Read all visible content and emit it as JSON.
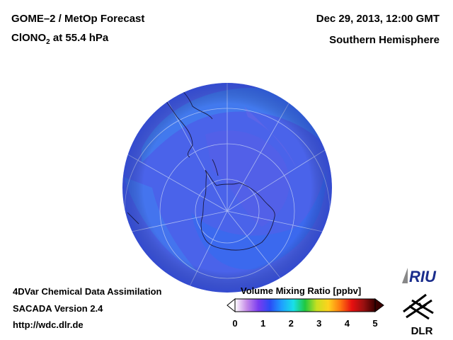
{
  "header": {
    "title": "GOME–2 / MetOp Forecast",
    "species_main": "ClONO",
    "species_sub": "2",
    "species_level": " at 55.4 hPa",
    "date": "Dec 29, 2013, 12:00 GMT",
    "hemisphere": "Southern Hemisphere"
  },
  "footer": {
    "line1": "4DVar Chemical Data Assimilation",
    "line2": "SACADA Version 2.4",
    "url": "http://wdc.dlr.de"
  },
  "colorbar": {
    "title": "Volume Mixing Ratio [ppbv]",
    "ticks": [
      "0",
      "1",
      "2",
      "3",
      "4",
      "5"
    ],
    "range": [
      0,
      5
    ],
    "colors": [
      "#ffffff",
      "#c58be8",
      "#7a3cf0",
      "#2a4cf5",
      "#1ea0ff",
      "#19e0e8",
      "#20c840",
      "#c8e020",
      "#ffd21e",
      "#ff7a10",
      "#e81010",
      "#9a1010",
      "#3a0000"
    ]
  },
  "map": {
    "background_color": "#4a63ea",
    "projection": "orthographic south-polar"
  },
  "logos": {
    "riu_text": "RIU",
    "dlr_text": "DLR"
  }
}
